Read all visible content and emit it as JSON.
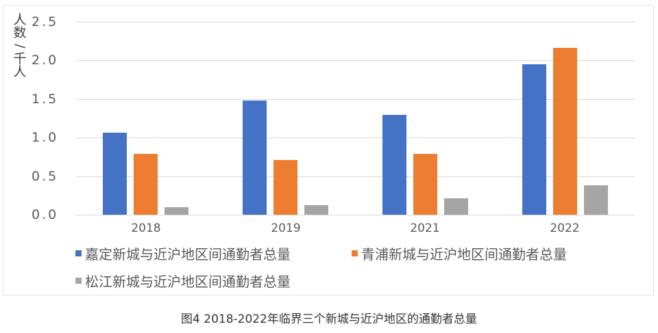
{
  "chart_data": {
    "type": "bar",
    "title": "",
    "xlabel": "",
    "ylabel": "人数/千人",
    "ylim": [
      0,
      2.5
    ],
    "yticks": [
      "0.0",
      "0.5",
      "1.0",
      "1.5",
      "2.0",
      "2.5"
    ],
    "grid": true,
    "legend_position": "bottom",
    "categories": [
      "2018",
      "2019",
      "2021",
      "2022"
    ],
    "series": [
      {
        "name": "嘉定新城与近沪地区间通勤者总量",
        "color": "#4472c4",
        "values": [
          1.06,
          1.48,
          1.29,
          1.95
        ]
      },
      {
        "name": "青浦新城与近沪地区间通勤者总量",
        "color": "#ed7d31",
        "values": [
          0.79,
          0.71,
          0.79,
          2.16
        ]
      },
      {
        "name": "松江新城与近沪地区间通勤者总量",
        "color": "#a5a5a5",
        "values": [
          0.1,
          0.12,
          0.21,
          0.38
        ]
      }
    ],
    "caption": "图4  2018-2022年临界三个新城与近沪地区的通勤者总量"
  },
  "ylabel_chars": [
    "人",
    "数",
    "/",
    "千",
    "人"
  ],
  "caption": "图4  2018-2022年临界三个新城与近沪地区的通勤者总量"
}
